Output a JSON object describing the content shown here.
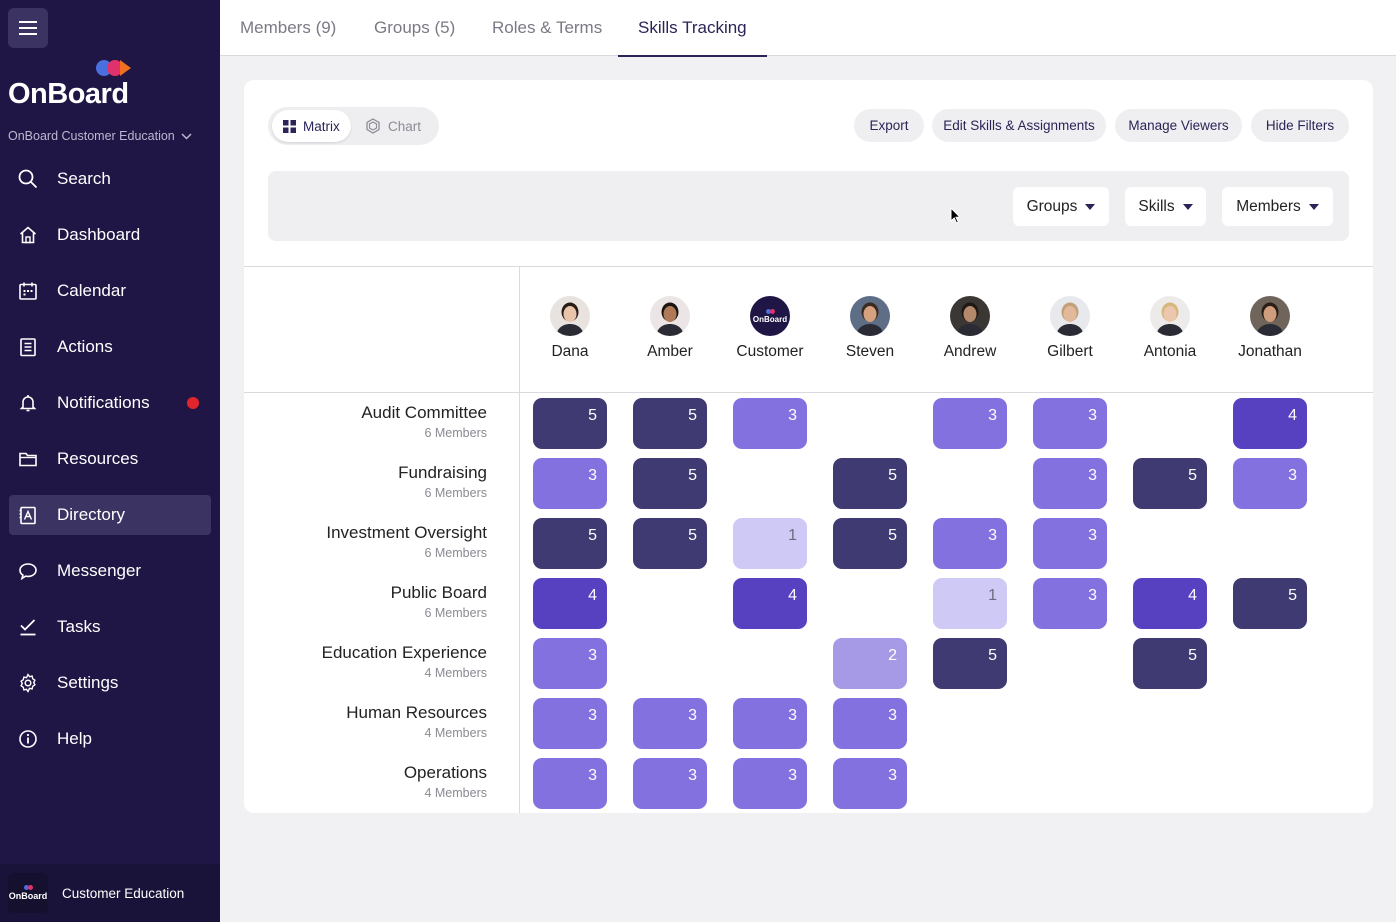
{
  "sidebar": {
    "logo_text": "OnBoard",
    "org_name": "OnBoard Customer Education",
    "nav": [
      {
        "label": "Search",
        "icon": "search-icon",
        "active": false
      },
      {
        "label": "Dashboard",
        "icon": "home-icon",
        "active": false
      },
      {
        "label": "Calendar",
        "icon": "calendar-icon",
        "active": false
      },
      {
        "label": "Actions",
        "icon": "clipboard-icon",
        "active": false
      },
      {
        "label": "Notifications",
        "icon": "bell-icon",
        "active": false,
        "badge": true
      },
      {
        "label": "Resources",
        "icon": "folder-icon",
        "active": false
      },
      {
        "label": "Directory",
        "icon": "directory-icon",
        "active": true
      },
      {
        "label": "Messenger",
        "icon": "chat-bubble-icon",
        "active": false
      },
      {
        "label": "Tasks",
        "icon": "checkmark-icon",
        "active": false
      },
      {
        "label": "Settings",
        "icon": "gear-icon",
        "active": false
      },
      {
        "label": "Help",
        "icon": "info-icon",
        "active": false
      }
    ],
    "footer": {
      "avatar_text": "OnBoard",
      "label": "Customer Education"
    }
  },
  "tabs": [
    {
      "label": "Members (9)",
      "active": false
    },
    {
      "label": "Groups (5)",
      "active": false
    },
    {
      "label": "Roles & Terms",
      "active": false
    },
    {
      "label": "Skills Tracking",
      "active": true
    }
  ],
  "view_toggle": {
    "matrix": "Matrix",
    "chart": "Chart",
    "selected": "Matrix"
  },
  "actions": {
    "export": "Export",
    "edit": "Edit Skills & Assignments",
    "manage": "Manage Viewers",
    "hide": "Hide Filters"
  },
  "filters": {
    "groups": "Groups",
    "skills": "Skills",
    "members": "Members"
  },
  "members": [
    {
      "name": "Dana",
      "avatar": "person-avatar"
    },
    {
      "name": "Amber",
      "avatar": "person-avatar"
    },
    {
      "name": "Customer",
      "avatar": "onboard-logo-avatar",
      "avatar_text": "OnBoard"
    },
    {
      "name": "Steven",
      "avatar": "person-avatar"
    },
    {
      "name": "Andrew",
      "avatar": "person-avatar"
    },
    {
      "name": "Gilbert",
      "avatar": "person-avatar"
    },
    {
      "name": "Antonia",
      "avatar": "person-avatar"
    },
    {
      "name": "Jonathan",
      "avatar": "person-avatar"
    }
  ],
  "skills": [
    {
      "name": "Audit Committee",
      "sub": "6 Members",
      "scores": [
        "5",
        "5",
        "3",
        "",
        "3",
        "3",
        "",
        "4"
      ]
    },
    {
      "name": "Fundraising",
      "sub": "6 Members",
      "scores": [
        "3",
        "5",
        "",
        "5",
        "",
        "3",
        "5",
        "3"
      ]
    },
    {
      "name": "Investment Oversight",
      "sub": "6 Members",
      "scores": [
        "5",
        "5",
        "1",
        "5",
        "3",
        "3",
        "",
        ""
      ]
    },
    {
      "name": "Public Board",
      "sub": "6 Members",
      "scores": [
        "4",
        "",
        "4",
        "",
        "1",
        "3",
        "4",
        "5"
      ]
    },
    {
      "name": "Education Experience",
      "sub": "4 Members",
      "scores": [
        "3",
        "",
        "",
        "2",
        "5",
        "",
        "5",
        ""
      ]
    },
    {
      "name": "Human Resources",
      "sub": "4 Members",
      "scores": [
        "3",
        "3",
        "3",
        "3",
        "",
        "",
        "",
        ""
      ]
    },
    {
      "name": "Operations",
      "sub": "4 Members",
      "scores": [
        "3",
        "3",
        "3",
        "3",
        "",
        "",
        "",
        ""
      ]
    }
  ],
  "colors": {
    "sidebar": "#1f1645",
    "level_1": "#cfc9f6",
    "level_2": "#a69ae6",
    "level_3": "#8471e0",
    "level_4": "#5841c0",
    "level_5": "#3f3a72",
    "notification": "#e0252b"
  }
}
